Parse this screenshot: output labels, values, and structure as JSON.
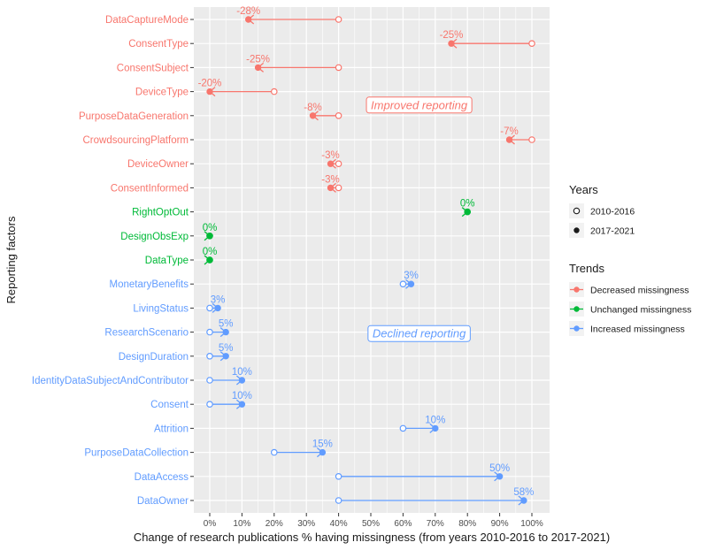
{
  "chart_data": {
    "type": "dumbbell",
    "xlabel": "Change of research publications % having missingness (from years 2010-2016 to 2017-2021)",
    "ylabel": "Reporting factors",
    "xlim": [
      0,
      100
    ],
    "x_ticks": [
      "0%",
      "10%",
      "20%",
      "30%",
      "40%",
      "50%",
      "60%",
      "70%",
      "80%",
      "90%",
      "100%"
    ],
    "x_tick_values": [
      0,
      10,
      20,
      30,
      40,
      50,
      60,
      70,
      80,
      90,
      100
    ],
    "rows": [
      {
        "factor": "DataCaptureMode",
        "from": 40,
        "to": 12,
        "change": "-28%",
        "trend": "decreased"
      },
      {
        "factor": "ConsentType",
        "from": 100,
        "to": 75,
        "change": "-25%",
        "trend": "decreased"
      },
      {
        "factor": "ConsentSubject",
        "from": 40,
        "to": 15,
        "change": "-25%",
        "trend": "decreased"
      },
      {
        "factor": "DeviceType",
        "from": 20,
        "to": 0,
        "change": "-20%",
        "trend": "decreased"
      },
      {
        "factor": "PurposeDataGeneration",
        "from": 40,
        "to": 32,
        "change": "-8%",
        "trend": "decreased"
      },
      {
        "factor": "CrowdsourcingPlatform",
        "from": 100,
        "to": 93,
        "change": "-7%",
        "trend": "decreased"
      },
      {
        "factor": "DeviceOwner",
        "from": 40,
        "to": 37.5,
        "change": "-3%",
        "trend": "decreased"
      },
      {
        "factor": "ConsentInformed",
        "from": 40,
        "to": 37.5,
        "change": "-3%",
        "trend": "decreased"
      },
      {
        "factor": "RightOptOut",
        "from": 80,
        "to": 80,
        "change": "0%",
        "trend": "unchanged"
      },
      {
        "factor": "DesignObsExp",
        "from": 0,
        "to": 0,
        "change": "0%",
        "trend": "unchanged"
      },
      {
        "factor": "DataType",
        "from": 0,
        "to": 0,
        "change": "0%",
        "trend": "unchanged"
      },
      {
        "factor": "MonetaryBenefits",
        "from": 60,
        "to": 62.5,
        "change": "3%",
        "trend": "increased"
      },
      {
        "factor": "LivingStatus",
        "from": 0,
        "to": 2.5,
        "change": "3%",
        "trend": "increased"
      },
      {
        "factor": "ResearchScenario",
        "from": 0,
        "to": 5,
        "change": "5%",
        "trend": "increased"
      },
      {
        "factor": "DesignDuration",
        "from": 0,
        "to": 5,
        "change": "5%",
        "trend": "increased"
      },
      {
        "factor": "IdentityDataSubjectAndContributor",
        "from": 0,
        "to": 10,
        "change": "10%",
        "trend": "increased"
      },
      {
        "factor": "Consent",
        "from": 0,
        "to": 10,
        "change": "10%",
        "trend": "increased"
      },
      {
        "factor": "Attrition",
        "from": 60,
        "to": 70,
        "change": "10%",
        "trend": "increased"
      },
      {
        "factor": "PurposeDataCollection",
        "from": 20,
        "to": 35,
        "change": "15%",
        "trend": "increased"
      },
      {
        "factor": "DataAccess",
        "from": 40,
        "to": 90,
        "change": "50%",
        "trend": "increased"
      },
      {
        "factor": "DataOwner",
        "from": 40,
        "to": 97.5,
        "change": "58%",
        "trend": "increased"
      }
    ],
    "annotations": [
      {
        "text": "Improved reporting",
        "x": 65,
        "row": "PurposeDataGeneration",
        "trend": "decreased"
      },
      {
        "text": "Declined reporting",
        "x": 65,
        "row": "ResearchScenario",
        "trend": "increased",
        "offset_rows": 0.5
      }
    ],
    "legend": {
      "position": "right",
      "years_title": "Years",
      "years": [
        {
          "label": "2010-2016",
          "style": "open"
        },
        {
          "label": "2017-2021",
          "style": "filled"
        }
      ],
      "trends_title": "Trends",
      "trends": [
        {
          "key": "decreased",
          "label": "Decreased missingness"
        },
        {
          "key": "unchanged",
          "label": "Unchanged missingness"
        },
        {
          "key": "increased",
          "label": "Increased missingness"
        }
      ]
    },
    "colors": {
      "decreased": "#f8766d",
      "unchanged": "#00ba38",
      "increased": "#619cff",
      "panel": "#ebebeb",
      "grid_major": "#ffffff"
    }
  }
}
